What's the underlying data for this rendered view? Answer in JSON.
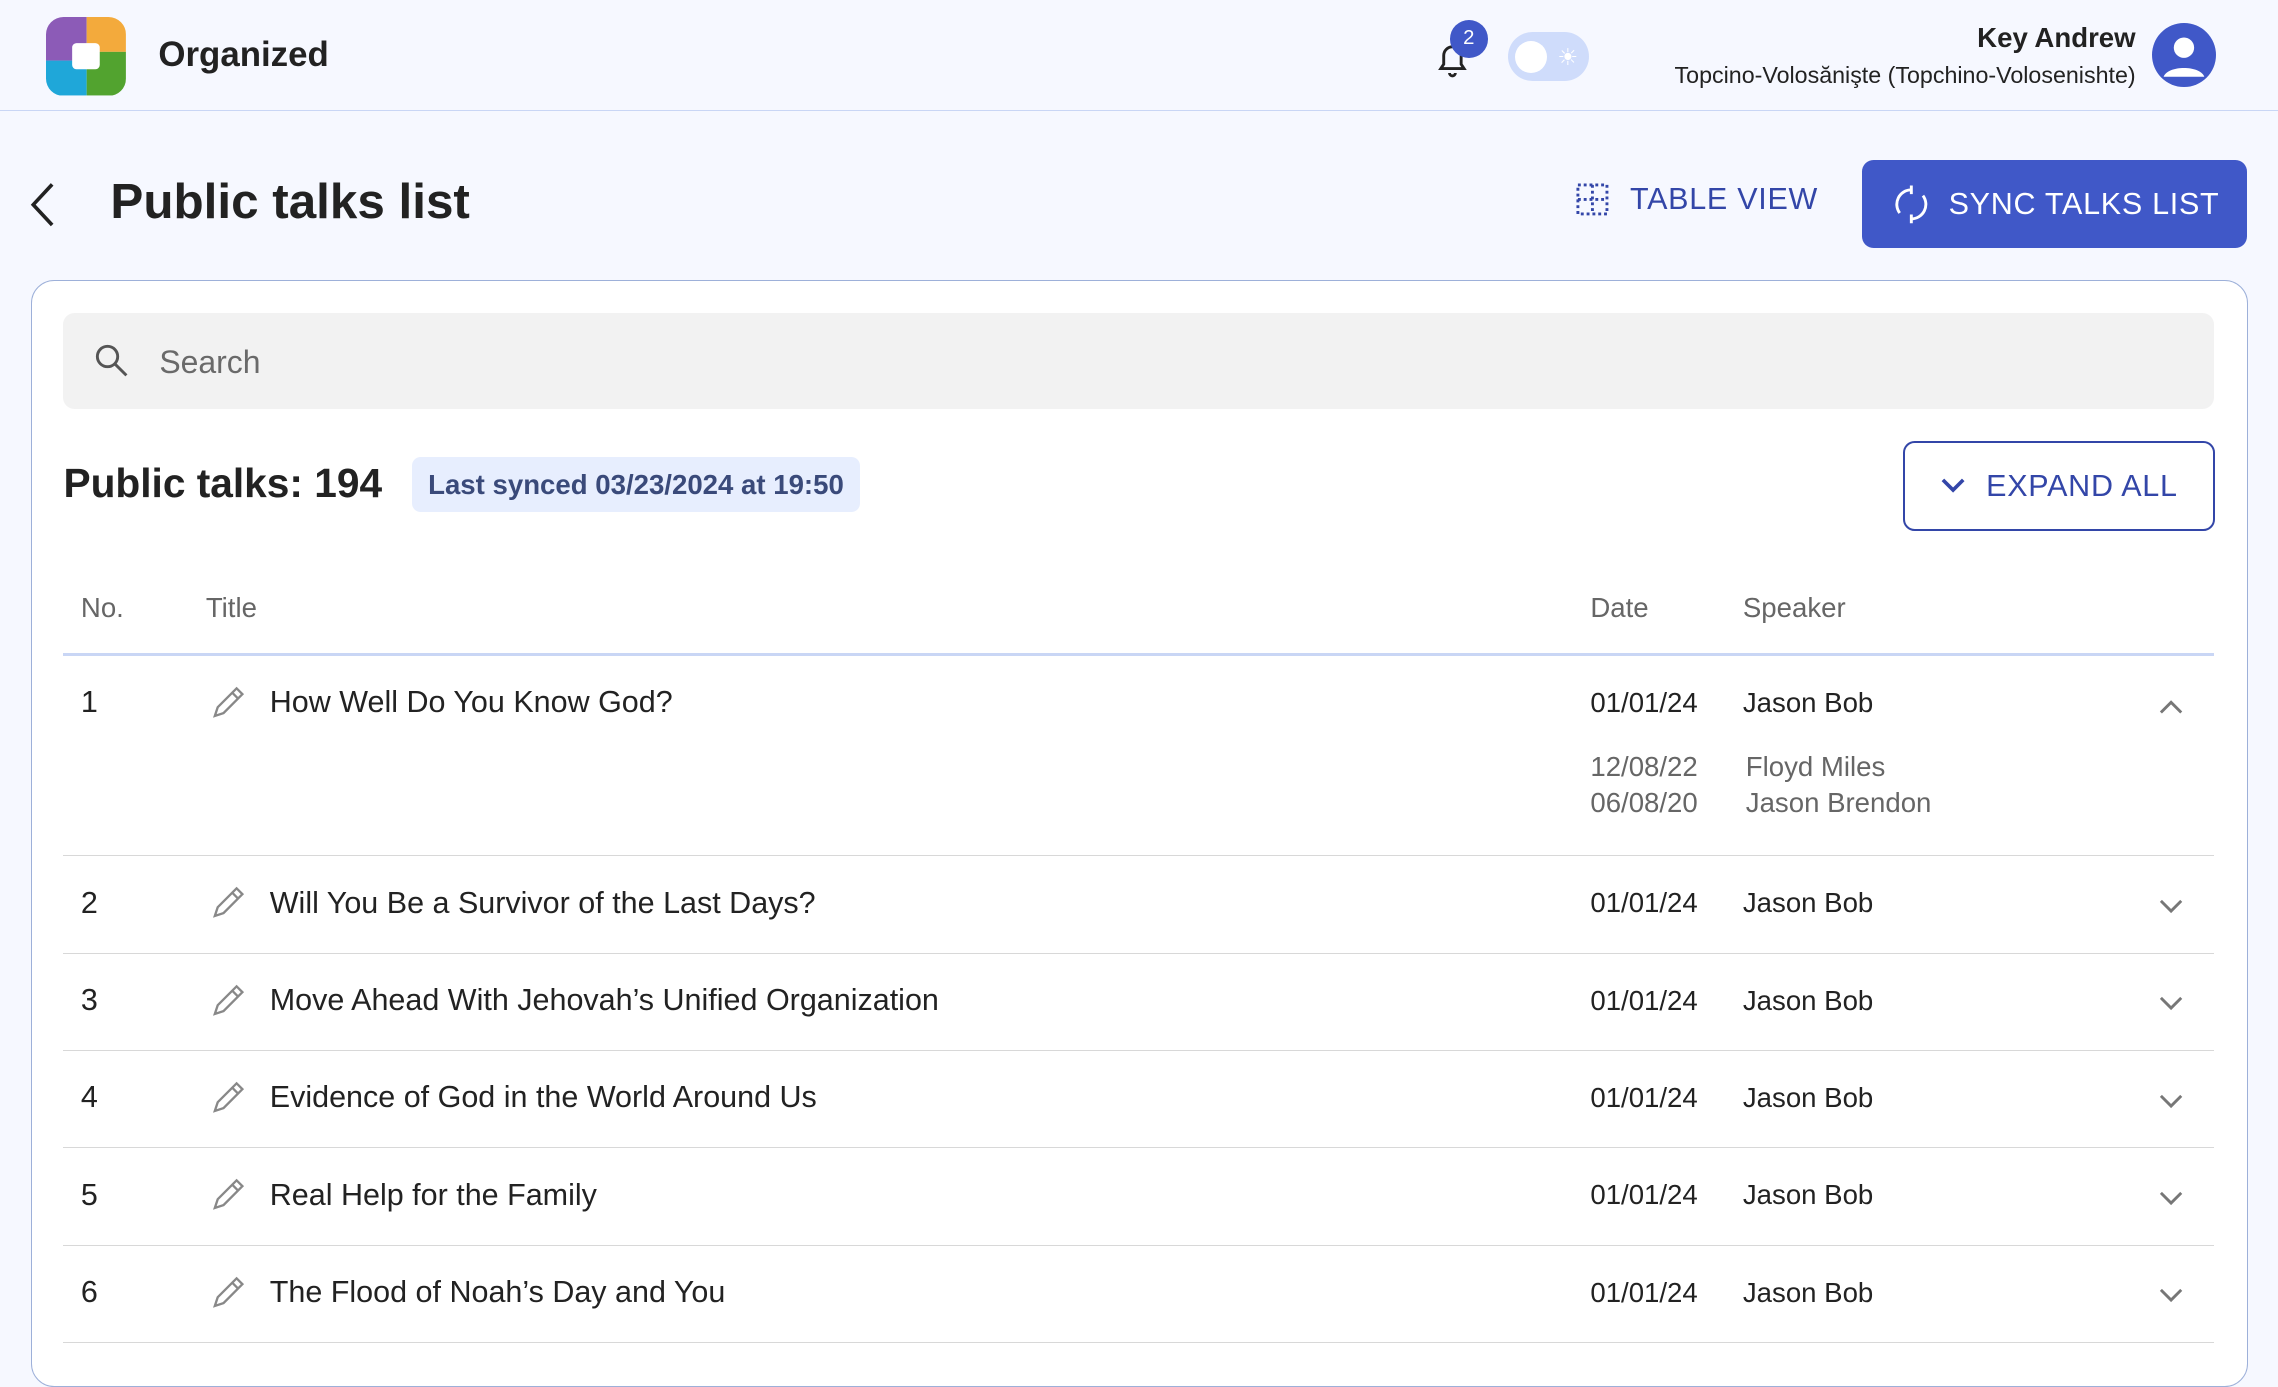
{
  "app": {
    "name": "Organized",
    "notifications": 2,
    "theme_toggle": "light"
  },
  "user": {
    "name": "Key Andrew",
    "congregation": "Topcino-Volosănişte (Topchino-Volosenishte)"
  },
  "page": {
    "title": "Public talks list",
    "table_view_label": "TABLE VIEW",
    "sync_label": "SYNC TALKS LIST"
  },
  "search": {
    "placeholder": "Search",
    "value": ""
  },
  "summary": {
    "count_label": "Public talks: 194",
    "last_synced": "Last synced 03/23/2024 at 19:50",
    "expand_all_label": "EXPAND ALL"
  },
  "table": {
    "headers": {
      "no": "No.",
      "title": "Title",
      "date": "Date",
      "speaker": "Speaker"
    },
    "rows": [
      {
        "no": "1",
        "title": "How Well Do You Know God?",
        "date": "01/01/24",
        "speaker": "Jason Bob",
        "expanded": true,
        "history": [
          {
            "date": "12/08/22",
            "speaker": "Floyd Miles"
          },
          {
            "date": "06/08/20",
            "speaker": "Jason Brendon"
          }
        ]
      },
      {
        "no": "2",
        "title": "Will You Be a Survivor of the Last Days?",
        "date": "01/01/24",
        "speaker": "Jason Bob"
      },
      {
        "no": "3",
        "title": "Move Ahead With Jehovah’s Unified Organization",
        "date": "01/01/24",
        "speaker": "Jason Bob"
      },
      {
        "no": "4",
        "title": "Evidence of God in the World Around Us",
        "date": "01/01/24",
        "speaker": "Jason Bob"
      },
      {
        "no": "5",
        "title": "Real Help for the Family",
        "date": "01/01/24",
        "speaker": "Jason Bob"
      },
      {
        "no": "6",
        "title": "The Flood of Noah’s Day and You",
        "date": "01/01/24",
        "speaker": "Jason Bob"
      }
    ]
  },
  "colors": {
    "primary": "#4058c8",
    "background": "#f6f8ff",
    "badge_bg": "#e7eefe"
  }
}
